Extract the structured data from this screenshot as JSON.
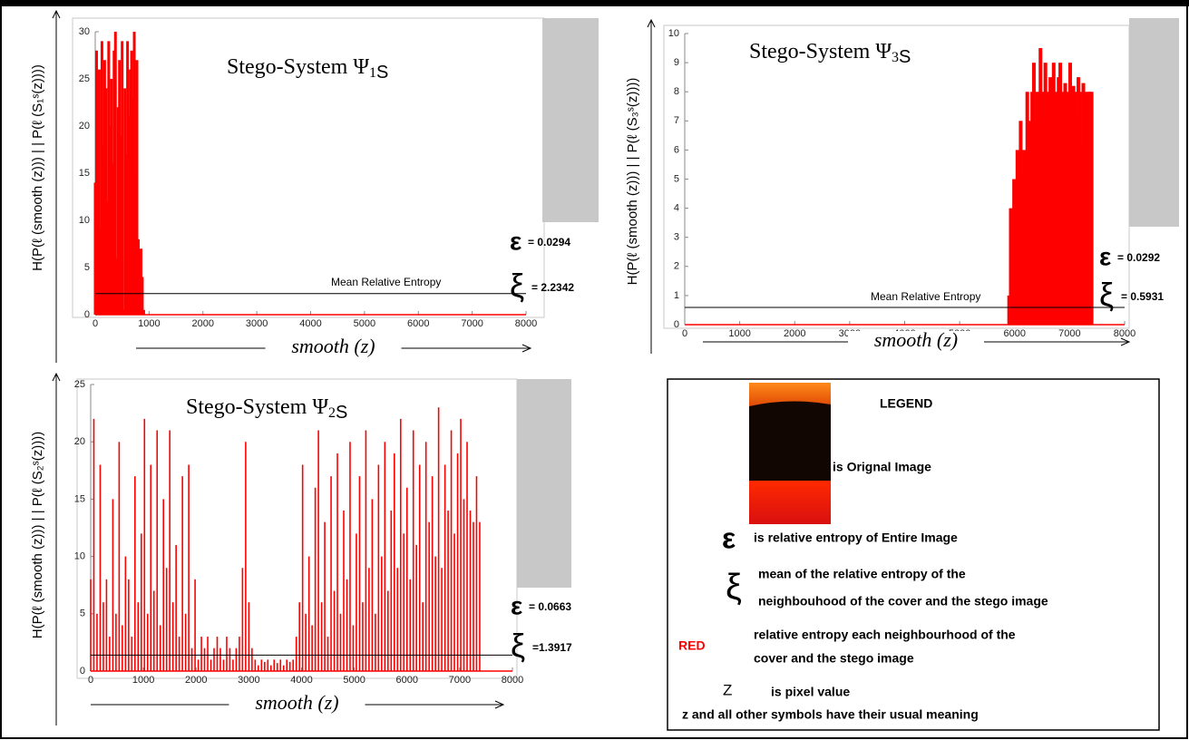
{
  "chart_data": [
    {
      "type": "bar",
      "title_parts": [
        "Stego-System Ψ",
        "1",
        "S"
      ],
      "y_label": "H(P(ℓ (smooth (z))) | |  P(ℓ (S₁ˢ(z))))",
      "x_label": "smooth (z)",
      "color": "#ff0000",
      "xlim": [
        0,
        8000
      ],
      "xticks": [
        0,
        1000,
        2000,
        3000,
        4000,
        5000,
        6000,
        7000,
        8000
      ],
      "ylim": [
        0,
        30
      ],
      "yticks": [
        0,
        5,
        10,
        15,
        20,
        25,
        30
      ],
      "x": [
        0,
        25,
        50,
        75,
        100,
        125,
        150,
        175,
        200,
        225,
        250,
        275,
        300,
        325,
        350,
        375,
        400,
        425,
        450,
        475,
        500,
        525,
        550,
        575,
        600,
        625,
        650,
        675,
        700,
        725,
        750,
        775,
        800,
        825,
        850,
        875,
        900
      ],
      "values": [
        14,
        28,
        22,
        26,
        9,
        29,
        18,
        27,
        24,
        12,
        29,
        20,
        25,
        16,
        28,
        30,
        6,
        22,
        27,
        19,
        29,
        0.5,
        24,
        17,
        29,
        21,
        26,
        28,
        23,
        30,
        15,
        27,
        8,
        2,
        7,
        4,
        0.5
      ],
      "mean": 2.2342,
      "mean_text": "Mean Relative Entropy",
      "epsilon_symbol": "ε",
      "epsilon_label": "= 0.0294",
      "xi_symbol": "ξ",
      "mean_label": "= 2.2342"
    },
    {
      "type": "bar",
      "title_parts": [
        "Stego-System Ψ",
        "3",
        "S"
      ],
      "y_label": "H(P(ℓ (smooth (z))) | |  P(ℓ (S₃ˢ(z))))",
      "x_label": "smooth (z)",
      "color": "#ff0000",
      "xlim": [
        0,
        8000
      ],
      "xticks": [
        0,
        1000,
        2000,
        3000,
        4000,
        5000,
        6000,
        7000,
        8000
      ],
      "ylim": [
        0,
        10
      ],
      "yticks": [
        0,
        1,
        2,
        3,
        4,
        5,
        6,
        7,
        8,
        9,
        10
      ],
      "x": [
        5900,
        5930,
        5960,
        5990,
        6020,
        6050,
        6080,
        6110,
        6140,
        6170,
        6200,
        6230,
        6260,
        6290,
        6320,
        6350,
        6380,
        6410,
        6440,
        6470,
        6500,
        6530,
        6560,
        6590,
        6620,
        6650,
        6680,
        6710,
        6740,
        6770,
        6800,
        6830,
        6860,
        6890,
        6920,
        6950,
        6980,
        7010,
        7040,
        7070,
        7100,
        7130,
        7160,
        7190,
        7220,
        7250,
        7280,
        7310,
        7340,
        7370,
        7400
      ],
      "values": [
        1,
        4,
        2,
        5,
        3,
        6,
        4,
        7,
        5,
        6,
        3,
        8,
        7,
        6,
        8,
        9,
        5,
        8,
        7,
        9.5,
        6,
        8,
        9,
        7,
        8,
        8.5,
        6,
        9,
        8,
        7,
        8.5,
        9,
        6,
        8,
        8.3,
        7,
        8,
        9,
        6,
        8.2,
        8,
        7,
        8.5,
        8,
        6,
        8.3,
        8,
        7,
        8,
        8,
        8
      ],
      "mean": 0.5931,
      "mean_text": "Mean Relative Entropy",
      "epsilon_symbol": "ε",
      "epsilon_label": "= 0.0292",
      "xi_symbol": "ξ",
      "mean_label": "= 0.5931"
    },
    {
      "type": "bar",
      "title_parts": [
        "Stego-System Ψ",
        "2",
        "S"
      ],
      "y_label": "H(P(ℓ (smooth (z))) | |  P(ℓ (S₂ˢ(z))))",
      "x_label": "smooth (z)",
      "color": "#ff0000",
      "xlim": [
        0,
        8000
      ],
      "xticks": [
        0,
        1000,
        2000,
        3000,
        4000,
        5000,
        6000,
        7000,
        8000
      ],
      "ylim": [
        0,
        25
      ],
      "yticks": [
        0,
        5,
        10,
        15,
        20,
        25
      ],
      "x": [
        0,
        60,
        120,
        180,
        240,
        300,
        360,
        420,
        480,
        540,
        600,
        660,
        720,
        780,
        840,
        900,
        960,
        1020,
        1080,
        1140,
        1200,
        1260,
        1320,
        1380,
        1440,
        1500,
        1560,
        1620,
        1680,
        1740,
        1800,
        1860,
        1920,
        1980,
        2040,
        2100,
        2160,
        2220,
        2280,
        2340,
        2400,
        2460,
        2520,
        2580,
        2640,
        2700,
        2760,
        2820,
        2880,
        2940,
        3000,
        3060,
        3120,
        3180,
        3240,
        3300,
        3360,
        3420,
        3480,
        3540,
        3600,
        3660,
        3720,
        3780,
        3840,
        3900,
        3960,
        4020,
        4080,
        4140,
        4200,
        4260,
        4320,
        4380,
        4440,
        4500,
        4560,
        4620,
        4680,
        4740,
        4800,
        4860,
        4920,
        4980,
        5040,
        5100,
        5160,
        5220,
        5280,
        5340,
        5400,
        5460,
        5520,
        5580,
        5640,
        5700,
        5760,
        5820,
        5880,
        5940,
        6000,
        6060,
        6120,
        6180,
        6240,
        6300,
        6360,
        6420,
        6480,
        6540,
        6600,
        6660,
        6720,
        6780,
        6840,
        6900,
        6960,
        7020,
        7080,
        7140,
        7200,
        7260,
        7320,
        7380
      ],
      "values": [
        8,
        22,
        5,
        18,
        6,
        8,
        3,
        15,
        5,
        20,
        4,
        10,
        8,
        3,
        17,
        6,
        12,
        22,
        5,
        18,
        7,
        21,
        4,
        15,
        9,
        21,
        6,
        11,
        3,
        17,
        5,
        18,
        2,
        8,
        1,
        3,
        2,
        3,
        1,
        2,
        3,
        2,
        1,
        3,
        2,
        1,
        2,
        3,
        9,
        20,
        6,
        2,
        1,
        0.5,
        1,
        0.8,
        1,
        0.5,
        1,
        0.7,
        1,
        0.5,
        1,
        0.8,
        1,
        3,
        6,
        18,
        5,
        10,
        4,
        16,
        21,
        6,
        13,
        3,
        17,
        7,
        19,
        5,
        14,
        8,
        20,
        4,
        12,
        17,
        6,
        21,
        9,
        15,
        5,
        18,
        10,
        20,
        7,
        14,
        19,
        9,
        22,
        12,
        16,
        8,
        21,
        11,
        18,
        6,
        20,
        13,
        17,
        10,
        23,
        9,
        18,
        14,
        21,
        12,
        19,
        22,
        15,
        20,
        14,
        13,
        17,
        13
      ],
      "mean": 1.3917,
      "epsilon_symbol": "ε",
      "epsilon_label": "= 0.0663",
      "xi_symbol": "ξ",
      "mean_label": "=1.3917"
    }
  ],
  "legend": {
    "title": "LEGEND",
    "image_text": "is Orignal Image",
    "epsilon_symbol": "ε",
    "epsilon_text": "is relative entropy of Entire Image",
    "xi_symbol": "ξ",
    "xi_text": [
      "mean of the relative entropy of the",
      "neighbouhood of the  cover and the stego image"
    ],
    "red_symbol": "RED",
    "red_text": [
      "relative entropy each neighbourhood of the",
      "cover and the stego image"
    ],
    "z_symbol": "Z",
    "z_text": "is pixel value",
    "note": "z and all other symbols have their  usual meaning"
  }
}
